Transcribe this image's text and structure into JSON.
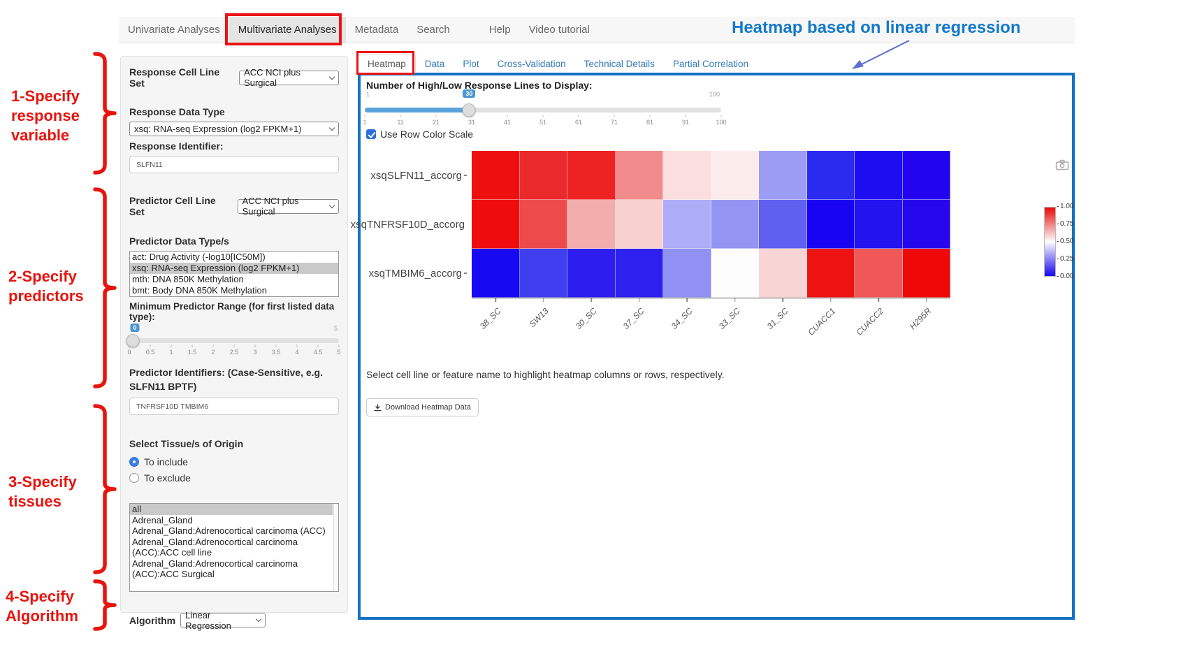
{
  "nav": {
    "items": [
      {
        "label": "Univariate Analyses",
        "active": false
      },
      {
        "label": "Multivariate Analyses",
        "active": true
      },
      {
        "label": "Metadata",
        "active": false
      },
      {
        "label": "Search",
        "active": false
      },
      {
        "label": "Help",
        "active": false
      },
      {
        "label": "Video tutorial",
        "active": false
      }
    ]
  },
  "annotations": {
    "heading": "Heatmap based on linear regression",
    "steps": [
      {
        "lines": [
          "1-Specify",
          "response",
          "variable"
        ]
      },
      {
        "lines": [
          "2-Specify",
          "predictors"
        ]
      },
      {
        "lines": [
          "3-Specify",
          "tissues"
        ]
      },
      {
        "lines": [
          "4-Specify",
          "Algorithm"
        ]
      }
    ]
  },
  "sidebar": {
    "response_cell_line_set": {
      "label": "Response Cell Line Set",
      "value": "ACC NCI plus Surgical"
    },
    "response_data_type": {
      "label": "Response Data Type",
      "value": "xsq: RNA-seq Expression (log2 FPKM+1)"
    },
    "response_identifier": {
      "label": "Response Identifier:",
      "value": "SLFN11"
    },
    "predictor_cell_line_set": {
      "label": "Predictor Cell Line Set",
      "value": "ACC NCI plus Surgical"
    },
    "predictor_data_types": {
      "label": "Predictor Data Type/s",
      "options": [
        "act: Drug Activity (-log10[IC50M])",
        "xsq: RNA-seq Expression (log2 FPKM+1)",
        "mth: DNA 850K Methylation",
        "bmt: Body DNA 850K Methylation"
      ],
      "selected_index": 1
    },
    "min_predictor_range": {
      "label": "Minimum Predictor Range (for first listed data type):",
      "value": "0",
      "max_label": "5",
      "ticks": [
        "0",
        "0.5",
        "1",
        "1.5",
        "2",
        "2.5",
        "3",
        "3.5",
        "4",
        "4.5",
        "5"
      ]
    },
    "predictor_identifiers": {
      "label": "Predictor Identifiers: (Case-Sensitive, e.g. SLFN11 BPTF)",
      "value": "TNFRSF10D TMBIM6"
    },
    "tissue": {
      "label": "Select Tissue/s of Origin",
      "radios": [
        {
          "label": "To include",
          "checked": true
        },
        {
          "label": "To exclude",
          "checked": false
        }
      ],
      "options": [
        "all",
        "Adrenal_Gland",
        "Adrenal_Gland:Adrenocortical carcinoma (ACC)",
        "Adrenal_Gland:Adrenocortical carcinoma (ACC):ACC cell line",
        "Adrenal_Gland:Adrenocortical carcinoma (ACC):ACC Surgical"
      ],
      "selected_index": 0
    },
    "algorithm": {
      "label": "Algorithm",
      "value": "Linear Regression"
    }
  },
  "main": {
    "tabs": [
      {
        "label": "Heatmap",
        "active": true
      },
      {
        "label": "Data",
        "active": false
      },
      {
        "label": "Plot",
        "active": false
      },
      {
        "label": "Cross-Validation",
        "active": false
      },
      {
        "label": "Technical Details",
        "active": false
      },
      {
        "label": "Partial Correlation",
        "active": false
      }
    ],
    "lines_slider": {
      "label": "Number of High/Low Response Lines to Display:",
      "min": "1",
      "max": "100",
      "value": "30",
      "ticks": [
        "1",
        "11",
        "21",
        "31",
        "41",
        "51",
        "61",
        "71",
        "81",
        "91",
        "100"
      ]
    },
    "row_color_checkbox": {
      "label": "Use Row Color Scale",
      "checked": true
    },
    "hint": "Select cell line or feature name to highlight heatmap columns or rows, respectively.",
    "download_button": "Download Heatmap Data"
  },
  "chart_data": {
    "type": "heatmap",
    "rows": [
      "xsqSLFN11_accorg",
      "xsqTNFRSF10D_accorg",
      "xsqTMBIM6_accorg"
    ],
    "columns": [
      "38_SC",
      "SW13",
      "30_SC",
      "37_SC",
      "34_SC",
      "33_SC",
      "31_SC",
      "CUACC1",
      "CUACC2",
      "H295R"
    ],
    "values": [
      [
        1.0,
        0.95,
        0.96,
        0.8,
        0.57,
        0.55,
        0.31,
        0.06,
        0.03,
        0.03
      ],
      [
        1.0,
        0.84,
        0.71,
        0.62,
        0.32,
        0.28,
        0.18,
        0.02,
        0.04,
        0.03
      ],
      [
        0.02,
        0.09,
        0.05,
        0.06,
        0.29,
        0.5,
        0.65,
        0.97,
        0.82,
        1.0
      ]
    ],
    "cell_colors": [
      [
        "#ee0f0f",
        "#ea2a2a",
        "#ed2222",
        "#f28b8b",
        "#fbdede",
        "#fcebeb",
        "#9c9cf4",
        "#2b2bf0",
        "#1d0df0",
        "#2304ee"
      ],
      [
        "#ee0c0c",
        "#ed4b4b",
        "#f2adad",
        "#f8d0d0",
        "#adadf8",
        "#9494f2",
        "#5f5ff0",
        "#1703f1",
        "#2313ee",
        "#2606ec"
      ],
      [
        "#1809f3",
        "#3f3ff0",
        "#2d1def",
        "#2e21ef",
        "#9191f3",
        "#fefdfe",
        "#f8d4d4",
        "#ee1313",
        "#f05757",
        "#ee0808"
      ]
    ],
    "colorbar": {
      "labels": [
        "1.00",
        "0.75",
        "0.50",
        "0.25",
        "0.00"
      ],
      "top_color": "#e60808",
      "mid_color": "#ffffff",
      "bottom_color": "#1505ee"
    },
    "legend_position": "right",
    "grid": false
  },
  "colors": {
    "accent_blue": "#1371c8",
    "link_blue": "#337ab7",
    "annotation_red": "#e8140d",
    "heading_blue": "#1579c8",
    "slider_blue": "#5aa2dc",
    "checkbox_blue": "#2c6fdf"
  }
}
